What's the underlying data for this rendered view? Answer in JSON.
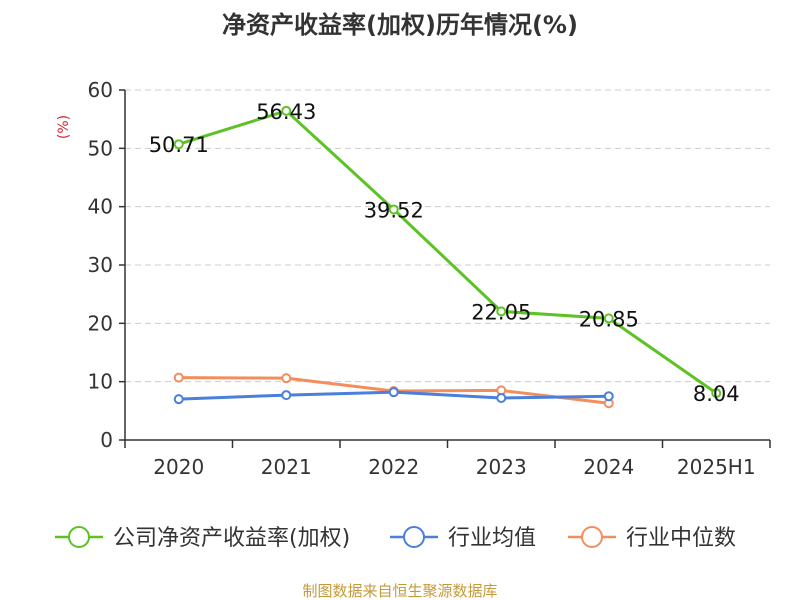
{
  "chart_data": {
    "type": "line",
    "title": "净资产收益率(加权)历年情况(%)",
    "ylabel": "(%)",
    "xlabel": "",
    "categories": [
      "2020",
      "2021",
      "2022",
      "2023",
      "2024",
      "2025H1"
    ],
    "ylim": [
      0,
      60
    ],
    "yticks": [
      0,
      10,
      20,
      30,
      40,
      50,
      60
    ],
    "grid": true,
    "legend_position": "bottom",
    "series": [
      {
        "name": "公司净资产收益率(加权)",
        "color": "#5cc325",
        "values": [
          50.71,
          56.43,
          39.52,
          22.05,
          20.85,
          8.04
        ],
        "labels": [
          "50.71",
          "56.43",
          "39.52",
          "22.05",
          "20.85",
          "8.04"
        ]
      },
      {
        "name": "行业均值",
        "color": "#4a7fdc",
        "values": [
          7.0,
          7.7,
          8.2,
          7.2,
          7.5,
          null
        ]
      },
      {
        "name": "行业中位数",
        "color": "#f28e5c",
        "values": [
          10.7,
          10.6,
          8.4,
          8.5,
          6.3,
          null
        ]
      }
    ]
  },
  "footer": {
    "text": "制图数据来自恒生聚源数据库",
    "color": "#c59a3a"
  },
  "colors": {
    "ylabel": "#d9262c",
    "axis": "#333333",
    "grid": "#cccccc"
  }
}
